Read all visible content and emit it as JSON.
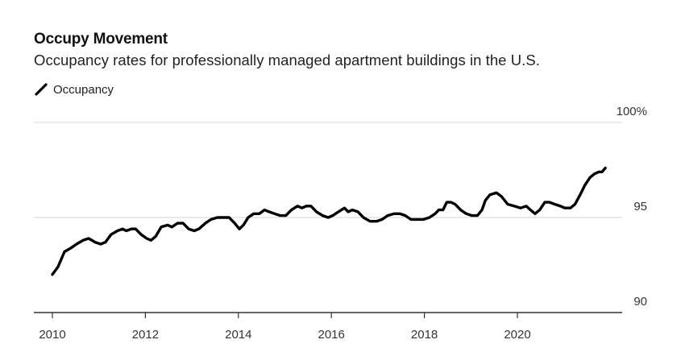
{
  "header": {
    "title": "Occupy Movement",
    "subtitle": "Occupancy rates for professionally managed apartment buildings in the U.S."
  },
  "legend": {
    "items": [
      {
        "label": "Occupancy",
        "icon": "line-swatch-icon",
        "color": "#000000"
      }
    ]
  },
  "colors": {
    "line": "#000000",
    "grid": "#e3e3e3",
    "axis": "#333333",
    "text": "#333333"
  },
  "chart_data": {
    "type": "line",
    "title": "Occupy Movement",
    "subtitle": "Occupancy rates for professionally managed apartment buildings in the U.S.",
    "xlabel": "",
    "ylabel": "",
    "xlim": [
      2009.6,
      2022.8
    ],
    "ylim": [
      90,
      100
    ],
    "x_ticks": [
      2010,
      2012,
      2014,
      2016,
      2018,
      2020
    ],
    "x_tick_labels": [
      "2010",
      "2012",
      "2014",
      "2016",
      "2018",
      "2020"
    ],
    "y_ticks": [
      90,
      95,
      100
    ],
    "y_tick_labels": [
      "90",
      "95",
      "100%"
    ],
    "grid": true,
    "legend_position": "top-left",
    "series": [
      {
        "name": "Occupancy",
        "x": [
          2010.0,
          2010.12,
          2010.26,
          2010.4,
          2010.52,
          2010.66,
          2010.78,
          2010.92,
          2011.04,
          2011.14,
          2011.26,
          2011.4,
          2011.51,
          2011.59,
          2011.7,
          2011.79,
          2011.91,
          2012.03,
          2012.12,
          2012.22,
          2012.34,
          2012.48,
          2012.57,
          2012.69,
          2012.81,
          2012.93,
          2013.05,
          2013.15,
          2013.29,
          2013.41,
          2013.55,
          2013.69,
          2013.8,
          2013.92,
          2014.02,
          2014.11,
          2014.21,
          2014.33,
          2014.45,
          2014.56,
          2014.66,
          2014.78,
          2014.9,
          2015.02,
          2015.14,
          2015.27,
          2015.37,
          2015.46,
          2015.56,
          2015.68,
          2015.81,
          2015.93,
          2016.03,
          2016.15,
          2016.28,
          2016.36,
          2016.45,
          2016.57,
          2016.69,
          2016.83,
          2016.97,
          2017.09,
          2017.21,
          2017.35,
          2017.47,
          2017.59,
          2017.71,
          2017.83,
          2017.98,
          2018.11,
          2018.23,
          2018.31,
          2018.4,
          2018.48,
          2018.57,
          2018.66,
          2018.78,
          2018.9,
          2019.02,
          2019.14,
          2019.24,
          2019.31,
          2019.41,
          2019.55,
          2019.66,
          2019.79,
          2019.93,
          2020.07,
          2020.19,
          2020.28,
          2020.38,
          2020.48,
          2020.59,
          2020.69,
          2020.8,
          2020.92,
          2021.02,
          2021.14,
          2021.24,
          2021.35,
          2021.45,
          2021.56,
          2021.66,
          2021.75,
          2021.82,
          2021.89
        ],
        "values": [
          92.0,
          92.4,
          93.2,
          93.4,
          93.6,
          93.8,
          93.9,
          93.7,
          93.6,
          93.7,
          94.1,
          94.3,
          94.4,
          94.3,
          94.4,
          94.4,
          94.1,
          93.9,
          93.8,
          94.0,
          94.5,
          94.6,
          94.5,
          94.7,
          94.7,
          94.4,
          94.3,
          94.4,
          94.7,
          94.9,
          95.0,
          95.0,
          95.0,
          94.7,
          94.4,
          94.6,
          95.0,
          95.2,
          95.2,
          95.4,
          95.3,
          95.2,
          95.1,
          95.1,
          95.4,
          95.6,
          95.5,
          95.6,
          95.6,
          95.3,
          95.1,
          95.0,
          95.1,
          95.3,
          95.5,
          95.3,
          95.4,
          95.3,
          95.0,
          94.8,
          94.8,
          94.9,
          95.1,
          95.2,
          95.2,
          95.1,
          94.9,
          94.9,
          94.9,
          95.0,
          95.2,
          95.4,
          95.4,
          95.8,
          95.8,
          95.7,
          95.4,
          95.2,
          95.1,
          95.1,
          95.4,
          95.9,
          96.2,
          96.3,
          96.1,
          95.7,
          95.6,
          95.5,
          95.6,
          95.4,
          95.2,
          95.4,
          95.8,
          95.8,
          95.7,
          95.6,
          95.5,
          95.5,
          95.7,
          96.2,
          96.7,
          97.1,
          97.3,
          97.4,
          97.4,
          97.6
        ]
      }
    ]
  }
}
